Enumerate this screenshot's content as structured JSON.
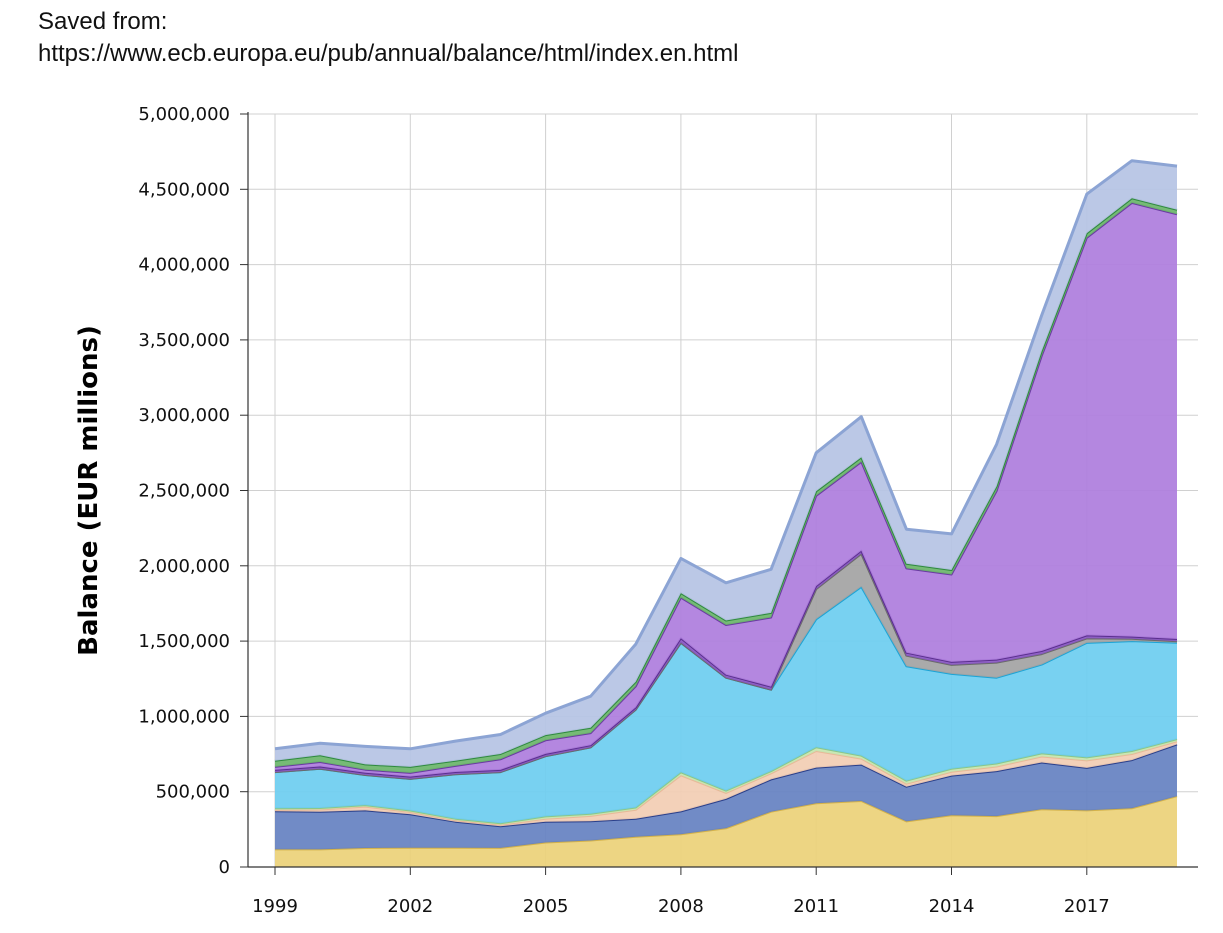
{
  "header": {
    "saved_from_label": "Saved from:",
    "url": "https://www.ecb.europa.eu/pub/annual/balance/html/index.en.html"
  },
  "chart_data": {
    "type": "area",
    "stacked": true,
    "title": "",
    "xlabel": "",
    "ylabel": "Balance (EUR millions)",
    "x": [
      1999,
      2000,
      2001,
      2002,
      2003,
      2004,
      2005,
      2006,
      2007,
      2008,
      2009,
      2010,
      2011,
      2012,
      2013,
      2014,
      2015,
      2016,
      2017,
      2018,
      2019
    ],
    "xlim": [
      1999,
      2019.6
    ],
    "x_ticks": [
      "1999",
      "2002",
      "2005",
      "2008",
      "2011",
      "2014",
      "2017"
    ],
    "ylim": [
      0,
      5000000
    ],
    "y_ticks": [
      "0",
      "500,000",
      "1,000,000",
      "1,500,000",
      "2,000,000",
      "2,500,000",
      "3,000,000",
      "3,500,000",
      "4,000,000",
      "4,500,000",
      "5,000,000"
    ],
    "grid": true,
    "legend": "none",
    "series": [
      {
        "color": "#ecd27a",
        "line": "#d4b24a",
        "values": [
          117000,
          117000,
          126000,
          128000,
          128000,
          127000,
          163000,
          176000,
          201000,
          217000,
          257000,
          367000,
          423000,
          438000,
          303000,
          343000,
          338000,
          383000,
          376000,
          390000,
          470000
        ]
      },
      {
        "color": "#6682c2",
        "line": "#2a3f8a",
        "values": [
          253000,
          250000,
          250000,
          222000,
          173000,
          143000,
          138000,
          128000,
          119000,
          152000,
          195000,
          215000,
          237000,
          242000,
          230000,
          264000,
          299000,
          311000,
          282000,
          320000,
          344000
        ]
      },
      {
        "color": "#f2ceb4",
        "line": "#e8b898",
        "values": [
          10000,
          15000,
          25000,
          15000,
          10000,
          10000,
          20000,
          35000,
          60000,
          240000,
          40000,
          40000,
          110000,
          40000,
          20000,
          25000,
          30000,
          40000,
          50000,
          40000,
          20000
        ]
      },
      {
        "color": "#c6e6b0",
        "line": "#8cc888",
        "values": [
          10000,
          10000,
          10000,
          10000,
          10000,
          10000,
          15000,
          15000,
          15000,
          20000,
          15000,
          15000,
          25000,
          20000,
          20000,
          20000,
          20000,
          20000,
          20000,
          20000,
          15000
        ]
      },
      {
        "color": "#6ecdf0",
        "line": "#1ca4d6",
        "values": [
          240000,
          260000,
          200000,
          210000,
          295000,
          340000,
          400000,
          440000,
          650000,
          860000,
          750000,
          540000,
          850000,
          1120000,
          760000,
          630000,
          570000,
          590000,
          760000,
          730000,
          640000
        ]
      },
      {
        "color": "#a4a4a4",
        "line": "#6a6a6a",
        "values": [
          0,
          0,
          0,
          0,
          0,
          0,
          0,
          0,
          0,
          0,
          0,
          0,
          200000,
          220000,
          70000,
          60000,
          100000,
          70000,
          30000,
          15000,
          10000
        ]
      },
      {
        "color": "#8a58c4",
        "line": "#5a2e8e",
        "values": [
          15000,
          15000,
          15000,
          15000,
          15000,
          15000,
          15000,
          15000,
          15000,
          30000,
          20000,
          20000,
          20000,
          20000,
          20000,
          20000,
          20000,
          20000,
          20000,
          15000,
          15000
        ]
      },
      {
        "color": "#ae7ede",
        "line": "#6a3aa2",
        "values": [
          20000,
          30000,
          20000,
          25000,
          40000,
          70000,
          90000,
          80000,
          140000,
          270000,
          330000,
          460000,
          600000,
          590000,
          560000,
          580000,
          1120000,
          1960000,
          2640000,
          2880000,
          2820000
        ]
      },
      {
        "color": "#6cb66c",
        "line": "#2e8a3e",
        "values": [
          40000,
          45000,
          35000,
          40000,
          35000,
          35000,
          35000,
          35000,
          30000,
          30000,
          30000,
          30000,
          30000,
          30000,
          30000,
          30000,
          30000,
          30000,
          30000,
          30000,
          30000
        ]
      },
      {
        "color": "#b6c4e4",
        "line": "#8ca4d4",
        "values": [
          80000,
          80000,
          120000,
          120000,
          130000,
          130000,
          145000,
          210000,
          250000,
          230000,
          250000,
          290000,
          255000,
          270000,
          230000,
          240000,
          280000,
          240000,
          260000,
          250000,
          290000
        ]
      }
    ]
  }
}
